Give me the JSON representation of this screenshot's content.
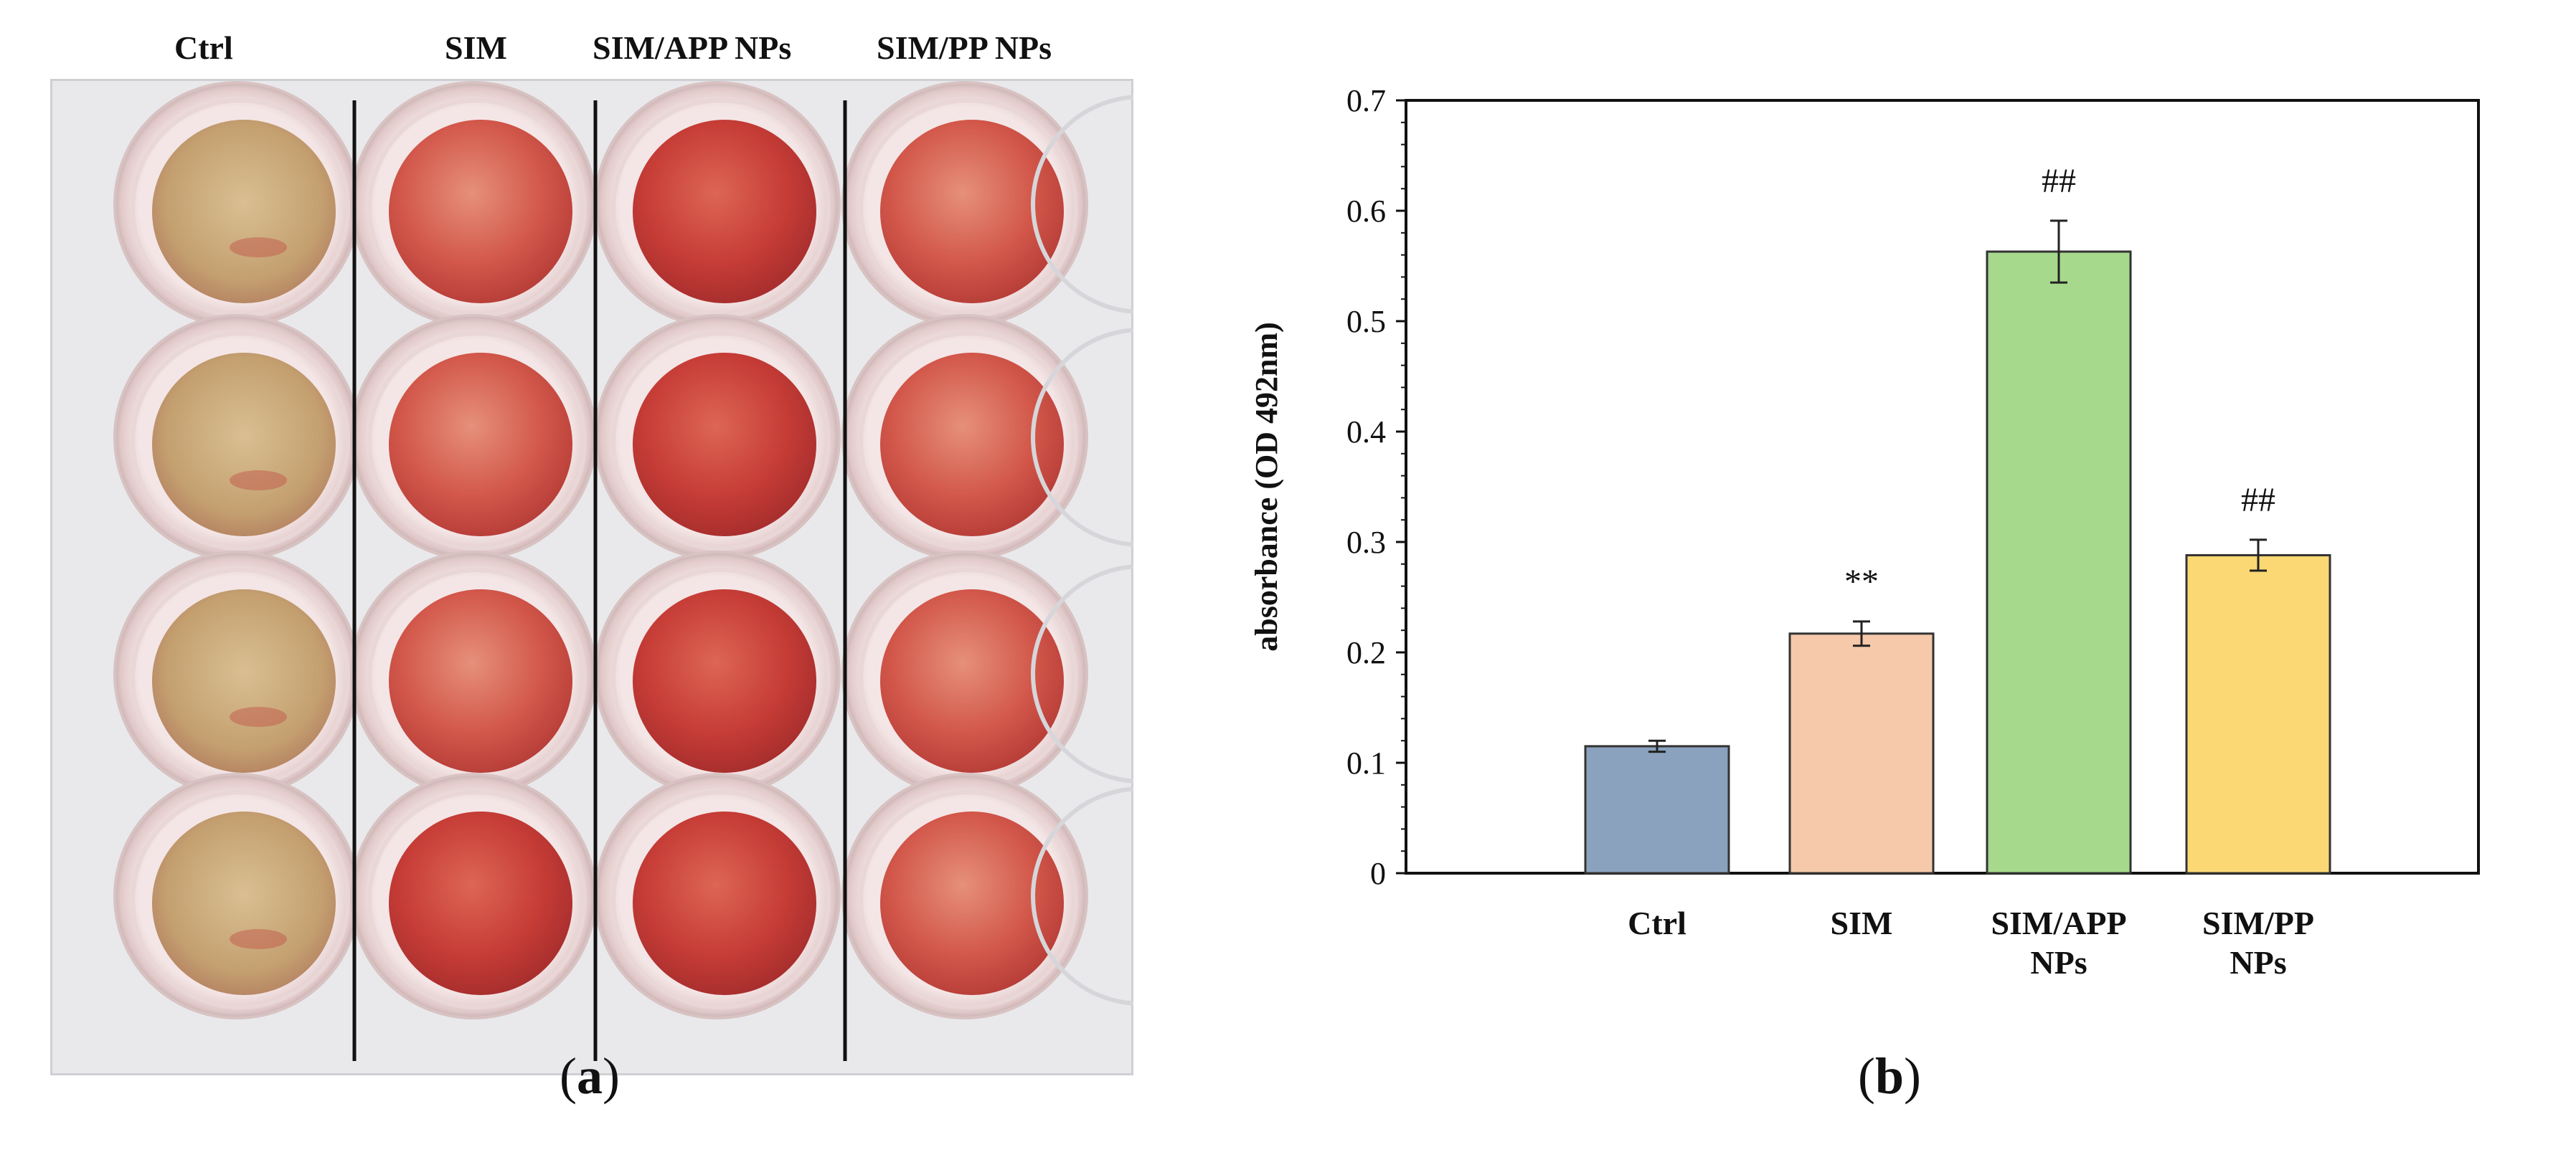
{
  "panel_a": {
    "column_labels": [
      "Ctrl",
      "SIM",
      "SIM/APP NPs",
      "SIM/PP NPs"
    ],
    "caption_open": "(",
    "caption_letter": "a",
    "caption_close": ")"
  },
  "panel_b": {
    "caption_open": "(",
    "caption_letter": "b",
    "caption_close": ")"
  },
  "colors": {
    "ctrl": "#8aa2bd",
    "sim": "#f6c9aa",
    "sim_app": "#a6d98c",
    "sim_pp": "#fbd873",
    "well_pale": "#c9a97a",
    "well_red": "#c8433d"
  },
  "chart_data": {
    "type": "bar",
    "title": "",
    "xlabel": "",
    "ylabel": "absorbance  (OD 492nm)",
    "ylim": [
      0,
      0.7
    ],
    "yticks": [
      "0",
      "0.1",
      "0.2",
      "0.3",
      "0.4",
      "0.5",
      "0.6",
      "0.7"
    ],
    "categories": [
      [
        "Ctrl"
      ],
      [
        "SIM"
      ],
      [
        "SIM/APP",
        "NPs"
      ],
      [
        "SIM/PP",
        "NPs"
      ]
    ],
    "values": [
      0.115,
      0.217,
      0.563,
      0.288
    ],
    "errors": [
      0.005,
      0.011,
      0.028,
      0.014
    ],
    "annotations": [
      "",
      "**",
      "##",
      "##"
    ],
    "grid": false
  }
}
